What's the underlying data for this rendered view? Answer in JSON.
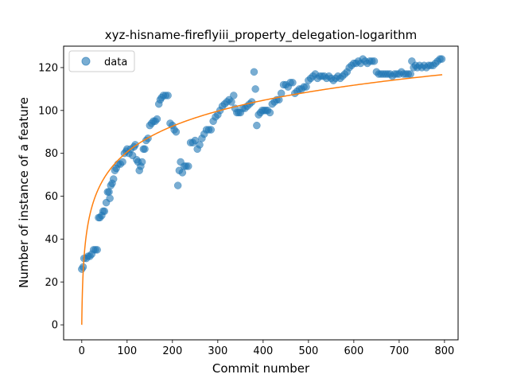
{
  "chart_data": {
    "type": "scatter",
    "title": "xyz-hisname-fireflyiii_property_delegation-logarithm",
    "xlabel": "Commit number",
    "ylabel": "Number of instance of a feature",
    "xlim": [
      -40,
      830
    ],
    "ylim": [
      -7,
      130
    ],
    "xticks": [
      0,
      100,
      200,
      300,
      400,
      500,
      600,
      700,
      800
    ],
    "yticks": [
      0,
      20,
      40,
      60,
      80,
      100,
      120
    ],
    "grid": false,
    "legend": {
      "placement": "top-left",
      "entries": [
        "data"
      ]
    },
    "colors": {
      "scatter": "#1f77b4",
      "fit": "#ff7f0e"
    },
    "series": [
      {
        "name": "data",
        "kind": "scatter",
        "points": [
          [
            0,
            26
          ],
          [
            3,
            27
          ],
          [
            5,
            31
          ],
          [
            10,
            31
          ],
          [
            14,
            32
          ],
          [
            18,
            32
          ],
          [
            22,
            33
          ],
          [
            26,
            35
          ],
          [
            30,
            35
          ],
          [
            34,
            35
          ],
          [
            37,
            50
          ],
          [
            40,
            50
          ],
          [
            44,
            51
          ],
          [
            47,
            53
          ],
          [
            50,
            53
          ],
          [
            54,
            57
          ],
          [
            57,
            62
          ],
          [
            60,
            62
          ],
          [
            62,
            59
          ],
          [
            64,
            65
          ],
          [
            67,
            66
          ],
          [
            70,
            68
          ],
          [
            73,
            72
          ],
          [
            76,
            73
          ],
          [
            80,
            75
          ],
          [
            85,
            75
          ],
          [
            90,
            76
          ],
          [
            94,
            80
          ],
          [
            98,
            81
          ],
          [
            100,
            82
          ],
          [
            104,
            80
          ],
          [
            108,
            82
          ],
          [
            112,
            79
          ],
          [
            115,
            83
          ],
          [
            118,
            84
          ],
          [
            121,
            77
          ],
          [
            124,
            76
          ],
          [
            127,
            72
          ],
          [
            130,
            74
          ],
          [
            133,
            76
          ],
          [
            136,
            82
          ],
          [
            139,
            82
          ],
          [
            142,
            86
          ],
          [
            146,
            87
          ],
          [
            150,
            93
          ],
          [
            154,
            94
          ],
          [
            158,
            95
          ],
          [
            162,
            95
          ],
          [
            166,
            96
          ],
          [
            170,
            103
          ],
          [
            173,
            105
          ],
          [
            176,
            106
          ],
          [
            180,
            107
          ],
          [
            185,
            107
          ],
          [
            190,
            107
          ],
          [
            195,
            94
          ],
          [
            200,
            93
          ],
          [
            204,
            91
          ],
          [
            208,
            90
          ],
          [
            212,
            65
          ],
          [
            215,
            72
          ],
          [
            218,
            76
          ],
          [
            222,
            71
          ],
          [
            226,
            74
          ],
          [
            230,
            74
          ],
          [
            235,
            74
          ],
          [
            240,
            85
          ],
          [
            245,
            85
          ],
          [
            250,
            86
          ],
          [
            255,
            82
          ],
          [
            260,
            84
          ],
          [
            265,
            87
          ],
          [
            270,
            89
          ],
          [
            275,
            91
          ],
          [
            280,
            91
          ],
          [
            285,
            91
          ],
          [
            290,
            95
          ],
          [
            295,
            97
          ],
          [
            300,
            98
          ],
          [
            305,
            100
          ],
          [
            310,
            102
          ],
          [
            315,
            103
          ],
          [
            320,
            104
          ],
          [
            325,
            105
          ],
          [
            330,
            104
          ],
          [
            335,
            107
          ],
          [
            338,
            101
          ],
          [
            342,
            99
          ],
          [
            346,
            99
          ],
          [
            350,
            99
          ],
          [
            355,
            101
          ],
          [
            360,
            101
          ],
          [
            365,
            102
          ],
          [
            370,
            103
          ],
          [
            375,
            104
          ],
          [
            380,
            118
          ],
          [
            383,
            110
          ],
          [
            386,
            93
          ],
          [
            390,
            98
          ],
          [
            394,
            99
          ],
          [
            398,
            100
          ],
          [
            402,
            100
          ],
          [
            406,
            100
          ],
          [
            410,
            100
          ],
          [
            415,
            99
          ],
          [
            420,
            103
          ],
          [
            425,
            104
          ],
          [
            430,
            105
          ],
          [
            435,
            105
          ],
          [
            440,
            108
          ],
          [
            445,
            112
          ],
          [
            450,
            112
          ],
          [
            455,
            111
          ],
          [
            460,
            113
          ],
          [
            465,
            113
          ],
          [
            470,
            108
          ],
          [
            475,
            109
          ],
          [
            480,
            110
          ],
          [
            485,
            110
          ],
          [
            490,
            111
          ],
          [
            495,
            111
          ],
          [
            500,
            114
          ],
          [
            505,
            115
          ],
          [
            510,
            116
          ],
          [
            515,
            117
          ],
          [
            520,
            115
          ],
          [
            525,
            116
          ],
          [
            530,
            116
          ],
          [
            535,
            116
          ],
          [
            540,
            115
          ],
          [
            545,
            116
          ],
          [
            550,
            115
          ],
          [
            555,
            114
          ],
          [
            560,
            115
          ],
          [
            565,
            116
          ],
          [
            570,
            115
          ],
          [
            575,
            116
          ],
          [
            580,
            117
          ],
          [
            585,
            118
          ],
          [
            590,
            120
          ],
          [
            595,
            121
          ],
          [
            600,
            122
          ],
          [
            605,
            122
          ],
          [
            610,
            123
          ],
          [
            615,
            122
          ],
          [
            620,
            124
          ],
          [
            625,
            123
          ],
          [
            630,
            122
          ],
          [
            635,
            123
          ],
          [
            640,
            123
          ],
          [
            645,
            123
          ],
          [
            650,
            118
          ],
          [
            655,
            117
          ],
          [
            660,
            117
          ],
          [
            665,
            117
          ],
          [
            670,
            117
          ],
          [
            675,
            117
          ],
          [
            680,
            117
          ],
          [
            685,
            116
          ],
          [
            690,
            117
          ],
          [
            695,
            117
          ],
          [
            700,
            117
          ],
          [
            705,
            118
          ],
          [
            710,
            117
          ],
          [
            715,
            117
          ],
          [
            720,
            117
          ],
          [
            725,
            117
          ],
          [
            728,
            123
          ],
          [
            732,
            120
          ],
          [
            736,
            121
          ],
          [
            740,
            120
          ],
          [
            745,
            121
          ],
          [
            750,
            120
          ],
          [
            755,
            121
          ],
          [
            760,
            120
          ],
          [
            765,
            121
          ],
          [
            770,
            121
          ],
          [
            775,
            121
          ],
          [
            780,
            122
          ],
          [
            785,
            123
          ],
          [
            790,
            124
          ],
          [
            794,
            124
          ]
        ]
      },
      {
        "kind": "line",
        "function": "a*ln(x+1)",
        "a": 17.47,
        "x_range": [
          0,
          795
        ]
      }
    ]
  }
}
